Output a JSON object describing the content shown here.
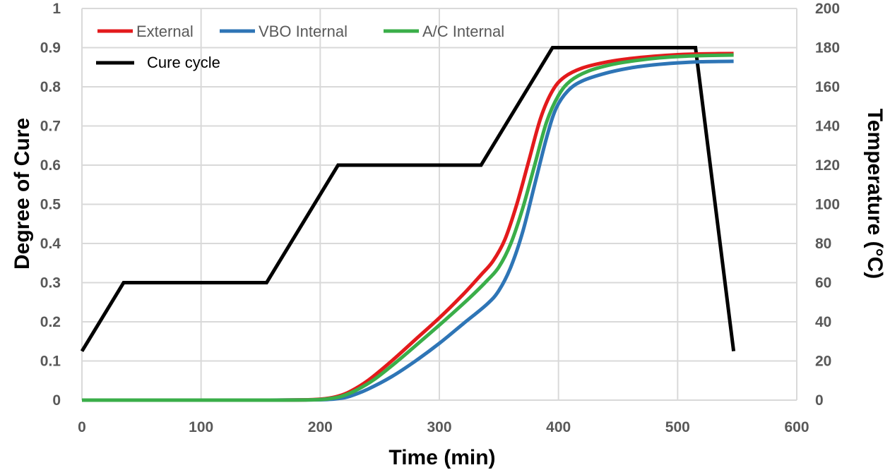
{
  "chart_data": {
    "type": "line",
    "title": "",
    "xlabel": "Time (min)",
    "ylabel": "Degree of Cure",
    "y2label": "Temperature (°C)",
    "xlim": [
      0,
      600
    ],
    "ylim": [
      0,
      1
    ],
    "y2lim": [
      0,
      200
    ],
    "x_ticks": [
      "0",
      "100",
      "200",
      "300",
      "400",
      "500",
      "600"
    ],
    "y_ticks": [
      "0",
      "0.1",
      "0.2",
      "0.3",
      "0.4",
      "0.5",
      "0.6",
      "0.7",
      "0.8",
      "0.9",
      "1"
    ],
    "y2_ticks": [
      "0",
      "20",
      "40",
      "60",
      "80",
      "100",
      "120",
      "140",
      "160",
      "180",
      "200"
    ],
    "grid": true,
    "legend_position": "top-left",
    "series": [
      {
        "name": "External",
        "axis": "left",
        "color": "#e31a1c",
        "points": [
          [
            0,
            0
          ],
          [
            100,
            0
          ],
          [
            150,
            0
          ],
          [
            190,
            0.001
          ],
          [
            205,
            0.004
          ],
          [
            215,
            0.01
          ],
          [
            225,
            0.022
          ],
          [
            240,
            0.05
          ],
          [
            260,
            0.1
          ],
          [
            280,
            0.155
          ],
          [
            300,
            0.21
          ],
          [
            320,
            0.27
          ],
          [
            335,
            0.32
          ],
          [
            345,
            0.355
          ],
          [
            355,
            0.41
          ],
          [
            365,
            0.5
          ],
          [
            375,
            0.61
          ],
          [
            385,
            0.72
          ],
          [
            395,
            0.79
          ],
          [
            405,
            0.825
          ],
          [
            420,
            0.848
          ],
          [
            440,
            0.863
          ],
          [
            460,
            0.872
          ],
          [
            480,
            0.878
          ],
          [
            500,
            0.882
          ],
          [
            520,
            0.884
          ],
          [
            547,
            0.885
          ]
        ]
      },
      {
        "name": "VBO Internal",
        "axis": "left",
        "color": "#2e75b6",
        "points": [
          [
            0,
            0
          ],
          [
            100,
            0
          ],
          [
            150,
            0
          ],
          [
            200,
            0.001
          ],
          [
            215,
            0.004
          ],
          [
            225,
            0.01
          ],
          [
            240,
            0.028
          ],
          [
            260,
            0.06
          ],
          [
            280,
            0.1
          ],
          [
            300,
            0.145
          ],
          [
            320,
            0.195
          ],
          [
            340,
            0.245
          ],
          [
            350,
            0.28
          ],
          [
            360,
            0.34
          ],
          [
            370,
            0.43
          ],
          [
            380,
            0.55
          ],
          [
            390,
            0.67
          ],
          [
            398,
            0.745
          ],
          [
            408,
            0.79
          ],
          [
            420,
            0.815
          ],
          [
            440,
            0.835
          ],
          [
            460,
            0.848
          ],
          [
            480,
            0.856
          ],
          [
            500,
            0.861
          ],
          [
            520,
            0.864
          ],
          [
            547,
            0.865
          ]
        ]
      },
      {
        "name": "A/C Internal",
        "axis": "left",
        "color": "#3aae49",
        "points": [
          [
            0,
            0
          ],
          [
            100,
            0
          ],
          [
            150,
            0
          ],
          [
            195,
            0.001
          ],
          [
            208,
            0.004
          ],
          [
            218,
            0.01
          ],
          [
            230,
            0.025
          ],
          [
            245,
            0.052
          ],
          [
            265,
            0.1
          ],
          [
            285,
            0.152
          ],
          [
            305,
            0.205
          ],
          [
            325,
            0.26
          ],
          [
            340,
            0.305
          ],
          [
            350,
            0.34
          ],
          [
            360,
            0.4
          ],
          [
            370,
            0.49
          ],
          [
            380,
            0.6
          ],
          [
            390,
            0.71
          ],
          [
            400,
            0.778
          ],
          [
            410,
            0.815
          ],
          [
            425,
            0.84
          ],
          [
            445,
            0.857
          ],
          [
            465,
            0.867
          ],
          [
            485,
            0.874
          ],
          [
            505,
            0.878
          ],
          [
            525,
            0.88
          ],
          [
            547,
            0.881
          ]
        ]
      },
      {
        "name": "Cure cycle",
        "axis": "right",
        "color": "#000000",
        "points": [
          [
            0,
            25
          ],
          [
            35,
            60
          ],
          [
            155,
            60
          ],
          [
            215,
            120
          ],
          [
            335,
            120
          ],
          [
            395,
            180
          ],
          [
            515,
            180
          ],
          [
            547,
            25
          ]
        ]
      }
    ]
  }
}
